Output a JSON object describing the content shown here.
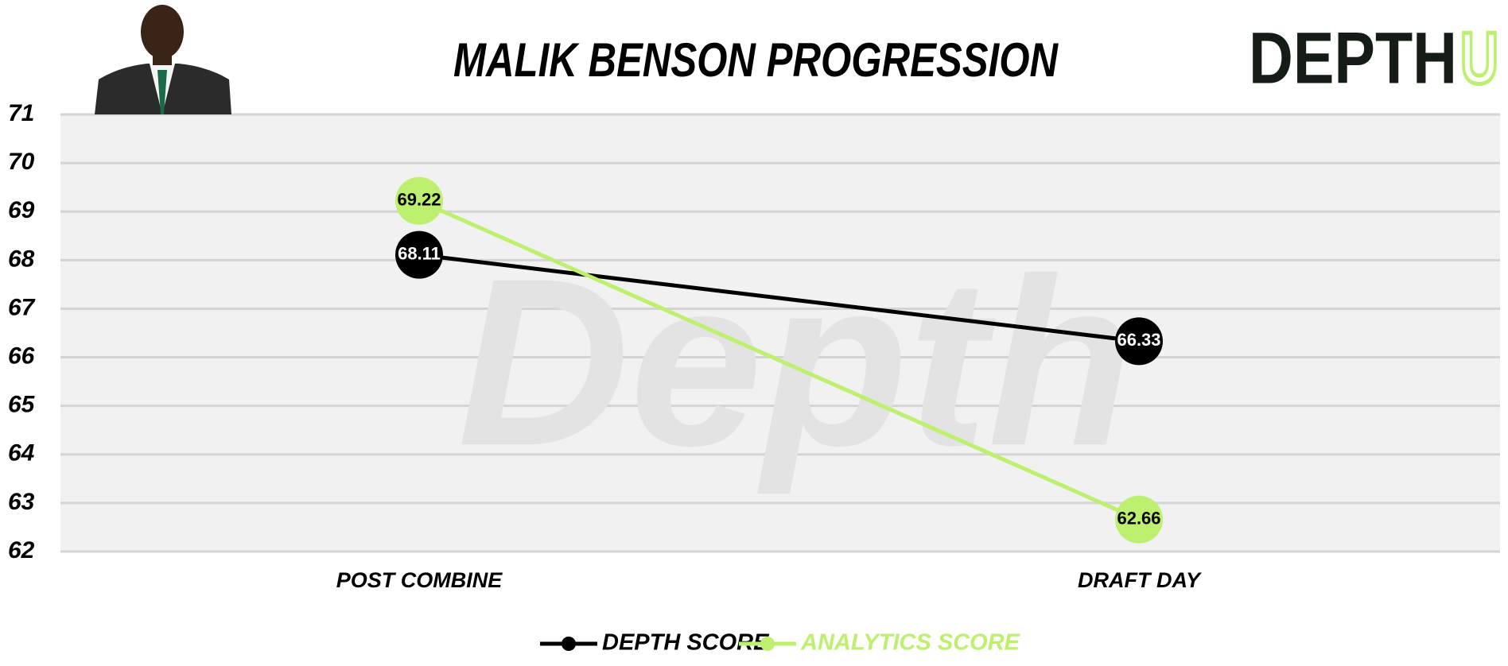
{
  "chart_data": {
    "type": "line",
    "title": "MALIK BENSON PROGRESSION",
    "categories": [
      "POST COMBINE",
      "DRAFT DAY"
    ],
    "series": [
      {
        "name": "DEPTH SCORE",
        "color": "#000000",
        "label_color": "#ffffff",
        "values": [
          68.11,
          66.33
        ]
      },
      {
        "name": "ANALYTICS SCORE",
        "color": "#bdf06e",
        "label_color": "#000000",
        "values": [
          69.22,
          62.66
        ]
      }
    ],
    "ylim": [
      62,
      71
    ],
    "yticks": [
      62,
      63,
      64,
      65,
      66,
      67,
      68,
      69,
      70,
      71
    ],
    "grid": true,
    "legend": "bottom",
    "watermark": "Depth",
    "logo": {
      "text": "DEPTH",
      "accent": "U"
    }
  }
}
